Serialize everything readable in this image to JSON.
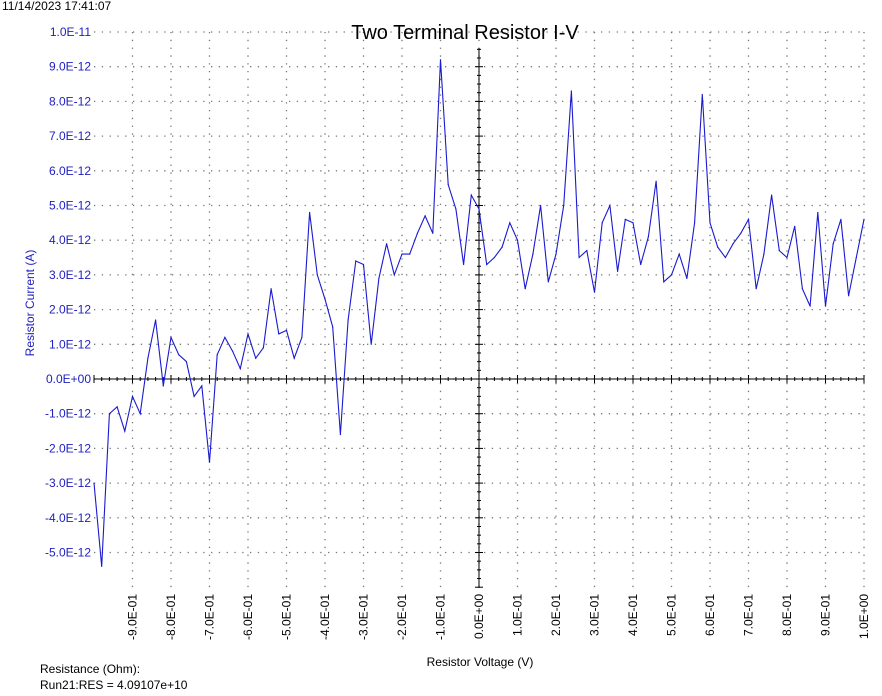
{
  "timestamp": "11/14/2023 17:41:07",
  "footer": {
    "resistance_label": "Resistance (Ohm):",
    "resistance_value": "Run21:RES = 4.09107e+10"
  },
  "chart_data": {
    "type": "line",
    "title": "Two Terminal Resistor I-V",
    "xlabel": "Resistor Voltage (V)",
    "ylabel": "Resistor Current (A)",
    "xlim": [
      -1.0,
      1.0
    ],
    "ylim": [
      -6e-12,
      1e-11
    ],
    "grid": true,
    "colors": {
      "line": "#1a1ad0",
      "ytick": "#2020c0",
      "axis": "#000000",
      "grid": "#777777"
    },
    "xticks": [
      -0.9,
      -0.8,
      -0.7,
      -0.6,
      -0.5,
      -0.4,
      -0.3,
      -0.2,
      -0.1,
      0.0,
      0.1,
      0.2,
      0.3,
      0.4,
      0.5,
      0.6,
      0.7,
      0.8,
      0.9,
      1.0
    ],
    "xtick_labels": [
      "-9.0E-01",
      "-8.0E-01",
      "-7.0E-01",
      "-6.0E-01",
      "-5.0E-01",
      "-4.0E-01",
      "-3.0E-01",
      "-2.0E-01",
      "-1.0E-01",
      "0.0E+00",
      "1.0E-01",
      "2.0E-01",
      "3.0E-01",
      "4.0E-01",
      "5.0E-01",
      "6.0E-01",
      "7.0E-01",
      "8.0E-01",
      "9.0E-01",
      "1.0E+00"
    ],
    "yticks": [
      1e-11,
      9e-12,
      8e-12,
      7e-12,
      6e-12,
      5e-12,
      4e-12,
      3e-12,
      2e-12,
      1e-12,
      0,
      -1e-12,
      -2e-12,
      -3e-12,
      -4e-12,
      -5e-12
    ],
    "ytick_labels": [
      "1.0E-11",
      "9.0E-12",
      "8.0E-12",
      "7.0E-12",
      "6.0E-12",
      "5.0E-12",
      "4.0E-12",
      "3.0E-12",
      "2.0E-12",
      "1.0E-12",
      "0.0E+00",
      "-1.0E-12",
      "-2.0E-12",
      "-3.0E-12",
      "-4.0E-12",
      "-5.0E-12"
    ],
    "series": [
      {
        "x": [
          -1.0,
          -0.98,
          -0.96,
          -0.94,
          -0.92,
          -0.9,
          -0.88,
          -0.86,
          -0.84,
          -0.82,
          -0.8,
          -0.78,
          -0.76,
          -0.74,
          -0.72,
          -0.7,
          -0.68,
          -0.66,
          -0.64,
          -0.62,
          -0.6,
          -0.58,
          -0.56,
          -0.54,
          -0.52,
          -0.5,
          -0.48,
          -0.46,
          -0.44,
          -0.42,
          -0.4,
          -0.38,
          -0.36,
          -0.34,
          -0.32,
          -0.3,
          -0.28,
          -0.26,
          -0.24,
          -0.22,
          -0.2,
          -0.18,
          -0.16,
          -0.14,
          -0.12,
          -0.1,
          -0.08,
          -0.06,
          -0.04,
          -0.02,
          0.0,
          0.02,
          0.04,
          0.06,
          0.08,
          0.1,
          0.12,
          0.14,
          0.16,
          0.18,
          0.2,
          0.22,
          0.24,
          0.26,
          0.28,
          0.3,
          0.32,
          0.34,
          0.36,
          0.38,
          0.4,
          0.42,
          0.44,
          0.46,
          0.48,
          0.5,
          0.52,
          0.54,
          0.56,
          0.58,
          0.6,
          0.62,
          0.64,
          0.66,
          0.68,
          0.7,
          0.72,
          0.74,
          0.76,
          0.78,
          0.8,
          0.82,
          0.84,
          0.86,
          0.88,
          0.9,
          0.92,
          0.94,
          0.96,
          0.98,
          1.0
        ],
        "y": [
          -3e-12,
          -5.4e-12,
          -1e-12,
          -8e-13,
          -1.5e-12,
          -5e-13,
          -1e-12,
          6e-13,
          1.7e-12,
          -2e-13,
          1.2e-12,
          7e-13,
          5e-13,
          -5e-13,
          -2e-13,
          -2.4e-12,
          7e-13,
          1.2e-12,
          8e-13,
          3e-13,
          1.3e-12,
          6e-13,
          9e-13,
          2.6e-12,
          1.3e-12,
          1.4e-12,
          6e-13,
          1.2e-12,
          4.8e-12,
          3e-12,
          2.3e-12,
          1.5e-12,
          -1.6e-12,
          1.7e-12,
          3.4e-12,
          3.3e-12,
          1e-12,
          2.9e-12,
          3.9e-12,
          3e-12,
          3.6e-12,
          3.6e-12,
          4.2e-12,
          4.7e-12,
          4.2e-12,
          9.2e-12,
          5.6e-12,
          4.9e-12,
          3.3e-12,
          5.3e-12,
          4.9e-12,
          3.3e-12,
          3.5e-12,
          3.8e-12,
          4.5e-12,
          4e-12,
          2.6e-12,
          3.6e-12,
          5e-12,
          2.8e-12,
          3.6e-12,
          5e-12,
          8.3e-12,
          3.5e-12,
          3.7e-12,
          2.5e-12,
          4.5e-12,
          5e-12,
          3.1e-12,
          4.6e-12,
          4.5e-12,
          3.3e-12,
          4.1e-12,
          5.7e-12,
          2.8e-12,
          3e-12,
          3.6e-12,
          2.9e-12,
          4.5e-12,
          8.2e-12,
          4.5e-12,
          3.8e-12,
          3.5e-12,
          3.9e-12,
          4.2e-12,
          4.6e-12,
          2.6e-12,
          3.6e-12,
          5.3e-12,
          3.7e-12,
          3.5e-12,
          4.4e-12,
          2.6e-12,
          2.1e-12,
          4.8e-12,
          2.1e-12,
          3.9e-12,
          4.6e-12,
          2.4e-12,
          3.5e-12,
          4.6e-12
        ]
      }
    ]
  }
}
